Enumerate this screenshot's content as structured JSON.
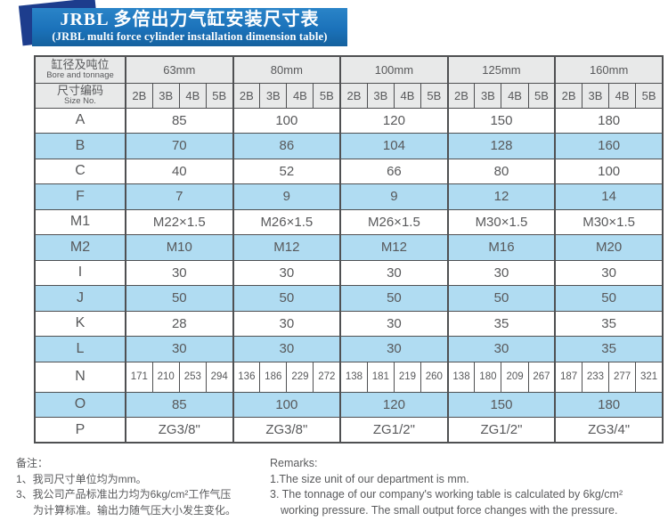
{
  "banner": {
    "title_cn": "JRBL 多倍出力气缸安装尺寸表",
    "title_en": "(JRBL multi force cylinder installation dimension table)"
  },
  "colors": {
    "banner_blue": "#1b72ba",
    "accent_navy": "#1d3d8d",
    "header_grey": "#e8e9e9",
    "row_blue": "#b0dcf2",
    "ink_grey": "#58595b"
  },
  "table": {
    "corner_row1": {
      "cn": "缸径及吨位",
      "en": "Bore and tonnage"
    },
    "corner_row2": {
      "cn": "尺寸编码",
      "en": "Size No."
    },
    "groups": [
      "63mm",
      "80mm",
      "100mm",
      "125mm",
      "160mm"
    ],
    "subcols": [
      "2B",
      "3B",
      "4B",
      "5B"
    ],
    "rows": [
      {
        "label": "A",
        "type": "span",
        "values": [
          "85",
          "100",
          "120",
          "150",
          "180"
        ]
      },
      {
        "label": "B",
        "type": "span",
        "values": [
          "70",
          "86",
          "104",
          "128",
          "160"
        ]
      },
      {
        "label": "C",
        "type": "span",
        "values": [
          "40",
          "52",
          "66",
          "80",
          "100"
        ]
      },
      {
        "label": "F",
        "type": "span",
        "values": [
          "7",
          "9",
          "9",
          "12",
          "14"
        ]
      },
      {
        "label": "M1",
        "type": "span",
        "values": [
          "M22×1.5",
          "M26×1.5",
          "M26×1.5",
          "M30×1.5",
          "M30×1.5"
        ]
      },
      {
        "label": "M2",
        "type": "span",
        "values": [
          "M10",
          "M12",
          "M12",
          "M16",
          "M20"
        ]
      },
      {
        "label": "I",
        "type": "span",
        "values": [
          "30",
          "30",
          "30",
          "30",
          "30"
        ]
      },
      {
        "label": "J",
        "type": "span",
        "values": [
          "50",
          "50",
          "50",
          "50",
          "50"
        ]
      },
      {
        "label": "K",
        "type": "span",
        "values": [
          "28",
          "30",
          "30",
          "35",
          "35"
        ]
      },
      {
        "label": "L",
        "type": "span",
        "values": [
          "30",
          "30",
          "30",
          "30",
          "35"
        ]
      },
      {
        "label": "N",
        "type": "each",
        "values": [
          "171",
          "210",
          "253",
          "294",
          "136",
          "186",
          "229",
          "272",
          "138",
          "181",
          "219",
          "260",
          "138",
          "180",
          "209",
          "267",
          "187",
          "233",
          "277",
          "321"
        ]
      },
      {
        "label": "O",
        "type": "span",
        "values": [
          "85",
          "100",
          "120",
          "150",
          "180"
        ]
      },
      {
        "label": "P",
        "type": "span",
        "values": [
          "ZG3/8\"",
          "ZG3/8\"",
          "ZG1/2\"",
          "ZG1/2\"",
          "ZG3/4\""
        ]
      }
    ]
  },
  "notes": {
    "cn": {
      "heading": "备注：",
      "line1": "1、我司尺寸单位均为mm。",
      "line3a": "3、我公司产品标准出力均为6kg/cm²工作气压",
      "line3b": "为计算标准。输出力随气压大小发生变化。"
    },
    "en": {
      "heading": "Remarks:",
      "line1": "1.The size unit of our department is mm.",
      "line3a": "3. The tonnage of our company's working table is calculated by 6kg/cm²",
      "line3b": "working pressure. The small output force changes with the pressure."
    }
  }
}
